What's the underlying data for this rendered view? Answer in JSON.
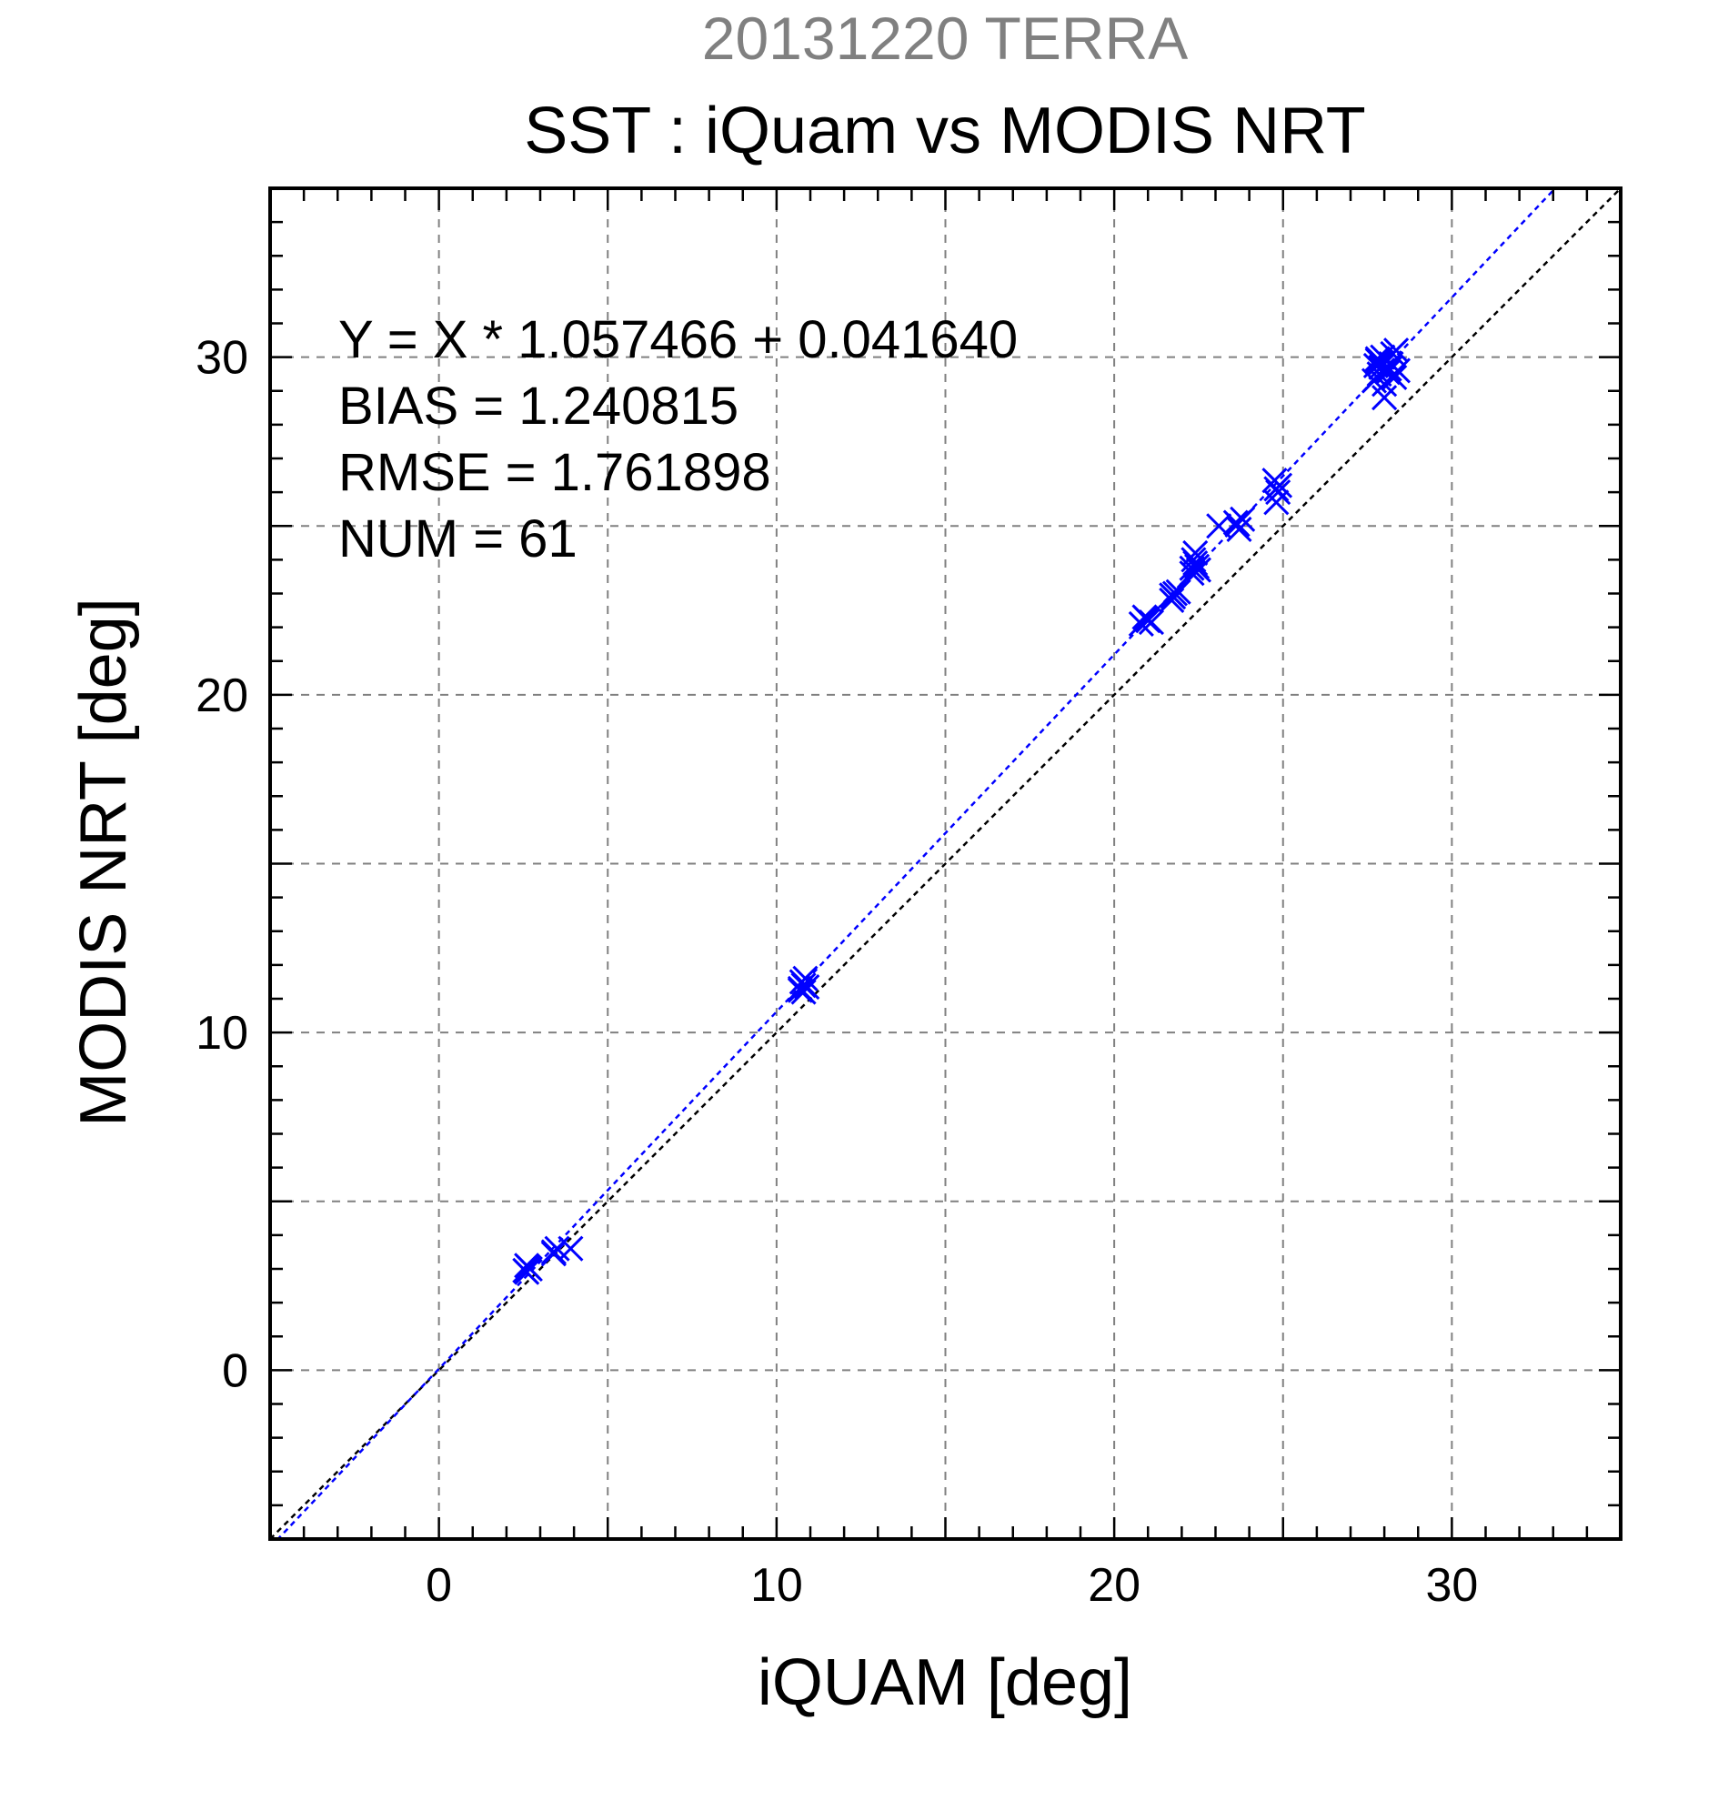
{
  "chart_data": {
    "type": "scatter",
    "supertitle": "20131220 TERRA",
    "title": "SST : iQuam vs MODIS NRT",
    "xlabel": "iQUAM [deg]",
    "ylabel": "MODIS NRT [deg]",
    "xlim": [
      -5,
      35
    ],
    "ylim": [
      -5,
      35
    ],
    "major_ticks": [
      0,
      10,
      20,
      30
    ],
    "major_tick_labels": [
      "0",
      "10",
      "20",
      "30"
    ],
    "grid_values": [
      0,
      5,
      10,
      15,
      20,
      25,
      30
    ],
    "minor_tick_step": 1,
    "grid": true,
    "stats": [
      "Y = X * 1.057466 + 0.041640",
      "BIAS = 1.240815",
      "RMSE = 1.761898",
      "NUM = 61"
    ],
    "fit_line": {
      "slope": 1.057466,
      "intercept": 0.04164,
      "color": "#0000ff"
    },
    "identity_line": {
      "slope": 1,
      "intercept": 0,
      "color": "#000000"
    },
    "marker_color": "#0000ff",
    "marker": "x",
    "x": [
      2.6,
      2.6,
      2.7,
      2.65,
      2.55,
      3.4,
      3.5,
      3.4,
      3.9,
      10.7,
      10.75,
      10.8,
      10.8,
      10.9,
      10.85,
      10.7,
      20.8,
      20.9,
      21.0,
      21.1,
      20.95,
      21.7,
      21.8,
      21.75,
      21.9,
      21.7,
      22.3,
      22.4,
      22.35,
      22.5,
      22.45,
      22.4,
      22.3,
      23.1,
      23.6,
      23.7,
      23.8,
      23.65,
      24.8,
      24.9,
      24.85,
      24.75,
      24.8,
      27.7,
      27.8,
      27.9,
      27.85,
      27.95,
      28.0,
      28.1,
      28.2,
      28.3,
      28.4,
      28.35,
      27.8,
      27.9,
      28.0,
      28.1,
      27.75,
      28.25,
      28.15
    ],
    "y": [
      3.1,
      2.9,
      3.0,
      3.05,
      2.95,
      3.5,
      3.6,
      3.45,
      3.6,
      11.3,
      11.5,
      11.4,
      11.2,
      11.35,
      11.6,
      11.25,
      22.1,
      22.3,
      22.2,
      22.15,
      22.25,
      22.8,
      23.0,
      22.9,
      23.05,
      22.95,
      23.6,
      23.9,
      24.0,
      23.7,
      23.8,
      24.2,
      23.75,
      25.0,
      25.1,
      24.9,
      25.2,
      25.05,
      25.7,
      26.2,
      26.0,
      26.35,
      26.1,
      29.3,
      29.9,
      29.7,
      29.5,
      30.0,
      28.8,
      29.6,
      29.8,
      29.4,
      29.6,
      30.2,
      29.95,
      29.85,
      29.2,
      29.55,
      29.75,
      30.1,
      29.65
    ]
  }
}
